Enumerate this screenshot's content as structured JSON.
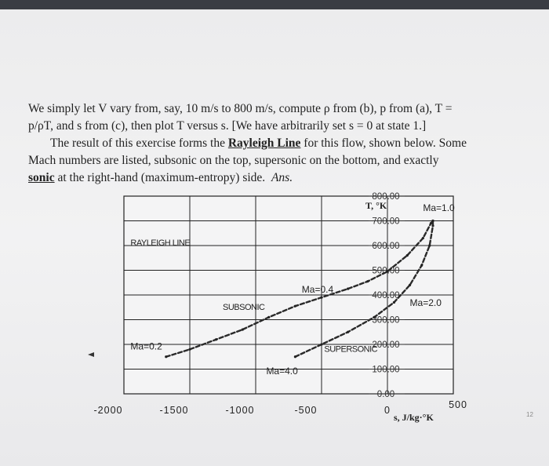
{
  "text": {
    "line1": "We simply let V vary from, say, 10 m/s to 800 m/s, compute ρ from (b), p from (a), T =",
    "line2": "p/ρT, and s from (c), then plot T versus s. [We have arbitrarily set s = 0 at state 1.]",
    "line3_pre": "The result of this exercise forms the ",
    "line3_link": "Rayleigh Line",
    "line3_post": " for this flow, shown below. Some",
    "line4": "Mach numbers are listed, subsonic on the top, supersonic on the bottom, and exactly",
    "line5_link": "sonic",
    "line5_post": " at the right-hand (maximum-entropy) side.",
    "line5_ans": "Ans."
  },
  "page_number": "12",
  "chart_data": {
    "type": "line",
    "xlim": [
      -2000,
      500
    ],
    "ylim": [
      0,
      800
    ],
    "x_ticks": [
      "-2000",
      "-1500",
      "-1000",
      "-500",
      "0",
      "500"
    ],
    "y_ticks": [
      "800.00",
      "700.00",
      "600.00",
      "500.00",
      "400.00",
      "300.00",
      "200.00",
      "100.00",
      "0.00"
    ],
    "ylabel": "T, °K",
    "xlabel": "s, J/kg·°K",
    "grid": true,
    "series": [
      {
        "name": "SUBSONIC",
        "points": [
          [
            -1680,
            150
          ],
          [
            -1500,
            180
          ],
          [
            -1300,
            220
          ],
          [
            -1100,
            260
          ],
          [
            -900,
            310
          ],
          [
            -700,
            355
          ],
          [
            -500,
            390
          ],
          [
            -300,
            425
          ],
          [
            -150,
            455
          ],
          [
            0,
            495
          ],
          [
            150,
            560
          ],
          [
            270,
            630
          ],
          [
            330,
            690
          ],
          [
            345,
            700
          ]
        ]
      },
      {
        "name": "SUPERSONIC",
        "points": [
          [
            -700,
            150
          ],
          [
            -500,
            200
          ],
          [
            -300,
            250
          ],
          [
            -100,
            310
          ],
          [
            50,
            370
          ],
          [
            170,
            440
          ],
          [
            260,
            520
          ],
          [
            320,
            600
          ],
          [
            345,
            680
          ],
          [
            345,
            700
          ]
        ]
      }
    ],
    "annotations": [
      {
        "text": "RAYLEIGH LINE",
        "x": -1950,
        "y": 600
      },
      {
        "text": "Ma=1.0",
        "x": 270,
        "y": 740
      },
      {
        "text": "Ma=0.4",
        "x": -650,
        "y": 410
      },
      {
        "text": "SUBSONIC",
        "x": -1250,
        "y": 340
      },
      {
        "text": "Ma=2.0",
        "x": 170,
        "y": 355
      },
      {
        "text": "Ma=0.2",
        "x": -1950,
        "y": 180
      },
      {
        "text": "SUPERSONIC",
        "x": -480,
        "y": 170
      },
      {
        "text": "Ma=4.0",
        "x": -920,
        "y": 80
      }
    ]
  }
}
